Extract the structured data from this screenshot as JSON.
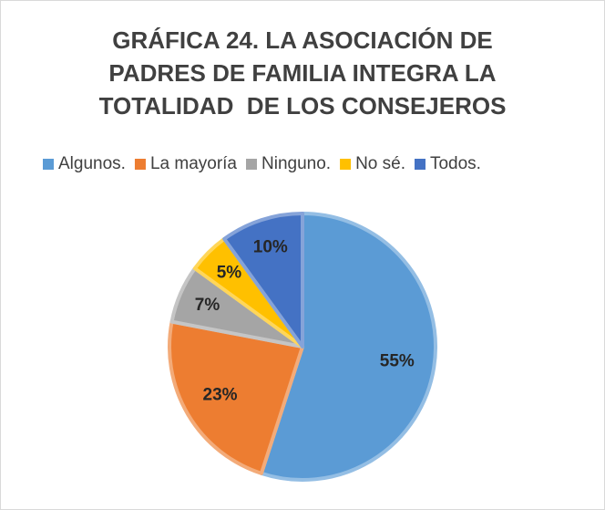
{
  "chart_data": {
    "type": "pie",
    "title": [
      "GRÁFICA 24. LA ASOCIACIÓN DE",
      "PADRES DE FAMILIA INTEGRA LA",
      "TOTALIDAD  DE LOS CONSEJEROS"
    ],
    "categories": [
      "Algunos.",
      "La mayoría",
      "Ninguno.",
      "No sé.",
      "Todos."
    ],
    "values": [
      55,
      23,
      7,
      5,
      10
    ],
    "value_labels": [
      "55%",
      "23%",
      "7%",
      "5%",
      "10%"
    ],
    "colors": [
      "#5b9bd5",
      "#ed7d31",
      "#a5a5a5",
      "#ffc000",
      "#4472c4"
    ],
    "legend": "top"
  }
}
